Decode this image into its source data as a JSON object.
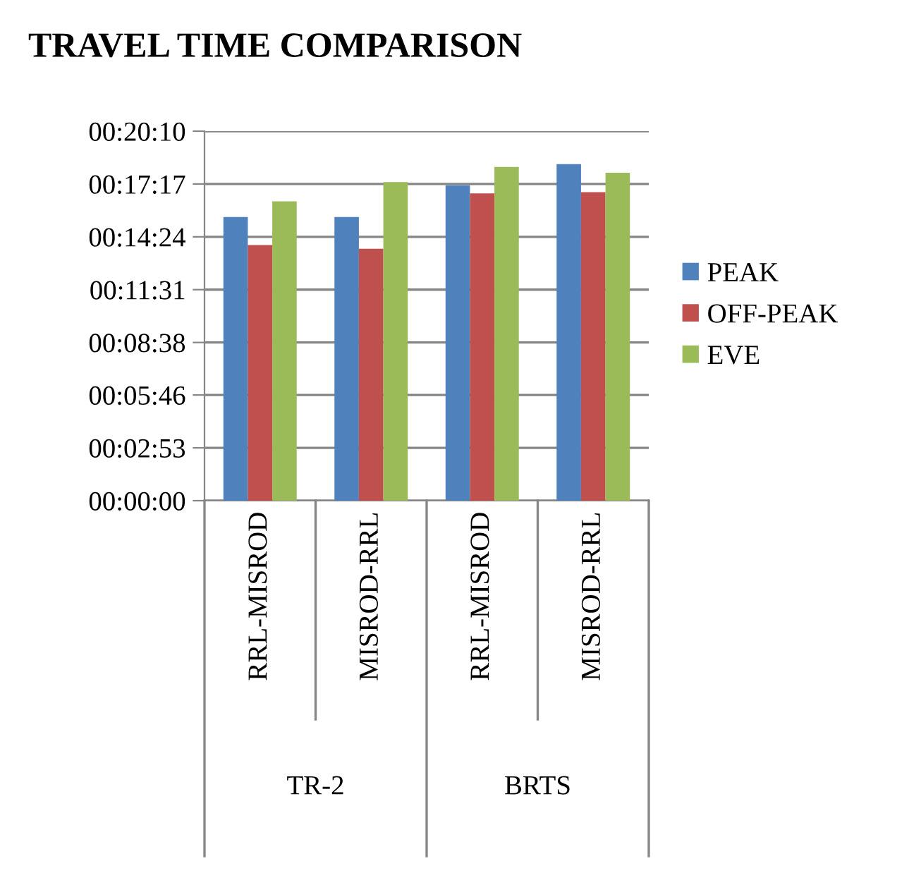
{
  "chart_data": {
    "type": "bar",
    "title": "TRAVEL TIME COMPARISON",
    "categories": [
      "RRL-MISROD",
      "MISROD-RRL",
      "RRL-MISROD",
      "MISROD-RRL"
    ],
    "series": [
      {
        "name": "PEAK",
        "color": "#4f81bd",
        "values": [
          929,
          929,
          1033,
          1102
        ]
      },
      {
        "name": "OFF-PEAK",
        "color": "#c0504d",
        "values": [
          837,
          825,
          1006,
          1010
        ]
      },
      {
        "name": "EVE",
        "color": "#9bbb59",
        "values": [
          980,
          1043,
          1093,
          1074
        ]
      }
    ],
    "ylim": [
      0,
      1210
    ],
    "yticks": [
      {
        "value": 0,
        "label": "00:00:00"
      },
      {
        "value": 173,
        "label": "00:02:53"
      },
      {
        "value": 346,
        "label": "00:05:46"
      },
      {
        "value": 518,
        "label": "00:08:38"
      },
      {
        "value": 691,
        "label": "00:11:31"
      },
      {
        "value": 864,
        "label": "00:14:24"
      },
      {
        "value": 1037,
        "label": "00:17:17"
      },
      {
        "value": 1210,
        "label": "00:20:10"
      }
    ],
    "annotations": [
      "TR-2",
      "BRTS"
    ],
    "grid": "y",
    "legend": "right"
  }
}
